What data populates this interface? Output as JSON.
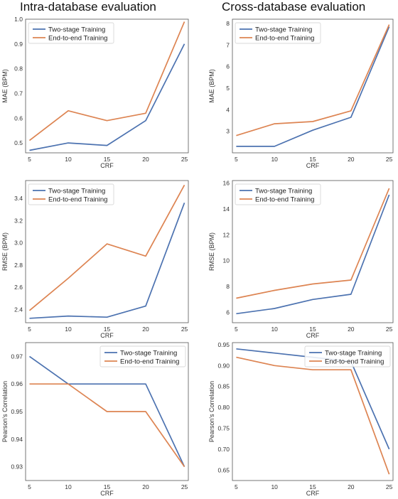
{
  "headings": {
    "left": "Intra-database evaluation",
    "right": "Cross-database evaluation"
  },
  "colors": {
    "two_stage": "#4c72b0",
    "end_to_end": "#dd8452"
  },
  "chart_data": [
    {
      "type": "line",
      "xlabel": "CRF",
      "ylabel": "MAE (BPM)",
      "x": [
        5,
        10,
        15,
        20,
        25
      ],
      "xticks": [
        "5",
        "10",
        "15",
        "20",
        "25"
      ],
      "ylim": [
        0.46,
        1.0
      ],
      "yticks": [
        "0.5",
        "0.6",
        "0.7",
        "0.8",
        "0.9",
        "1.0"
      ],
      "legend": "top-left",
      "grid": false,
      "series": [
        {
          "name": "Two-stage Training",
          "values": [
            0.47,
            0.5,
            0.49,
            0.59,
            0.9
          ]
        },
        {
          "name": "End-to-end Training",
          "values": [
            0.51,
            0.63,
            0.59,
            0.62,
            0.99
          ]
        }
      ]
    },
    {
      "type": "line",
      "xlabel": "CRF",
      "ylabel": "MAE (BPM)",
      "x": [
        5,
        10,
        15,
        20,
        25
      ],
      "xticks": [
        "5",
        "10",
        "15",
        "20",
        "25"
      ],
      "ylim": [
        2.0,
        8.2
      ],
      "yticks": [
        "3",
        "4",
        "5",
        "6",
        "7",
        "8"
      ],
      "legend": "top-left",
      "grid": false,
      "series": [
        {
          "name": "Two-stage Training",
          "values": [
            2.3,
            2.3,
            3.05,
            3.65,
            7.85
          ]
        },
        {
          "name": "End-to-end Training",
          "values": [
            2.8,
            3.35,
            3.45,
            3.95,
            7.95
          ]
        }
      ]
    },
    {
      "type": "line",
      "xlabel": "CRF",
      "ylabel": "RMSE (BPM)",
      "x": [
        5,
        10,
        15,
        20,
        25
      ],
      "xticks": [
        "5",
        "10",
        "15",
        "20",
        "25"
      ],
      "ylim": [
        2.28,
        3.56
      ],
      "yticks": [
        "2.4",
        "2.6",
        "2.8",
        "3.0",
        "3.2",
        "3.4"
      ],
      "legend": "top-left",
      "grid": false,
      "series": [
        {
          "name": "Two-stage Training",
          "values": [
            2.32,
            2.34,
            2.33,
            2.43,
            3.36
          ]
        },
        {
          "name": "End-to-end Training",
          "values": [
            2.39,
            2.68,
            2.99,
            2.88,
            3.52
          ]
        }
      ]
    },
    {
      "type": "line",
      "xlabel": "CRF",
      "ylabel": "RMSE (BPM)",
      "x": [
        5,
        10,
        15,
        20,
        25
      ],
      "xticks": [
        "5",
        "10",
        "15",
        "20",
        "25"
      ],
      "ylim": [
        5.2,
        16.2
      ],
      "yticks": [
        "6",
        "8",
        "10",
        "12",
        "14",
        "16"
      ],
      "legend": "top-left",
      "grid": false,
      "series": [
        {
          "name": "Two-stage Training",
          "values": [
            5.9,
            6.3,
            7.0,
            7.4,
            15.1
          ]
        },
        {
          "name": "End-to-end Training",
          "values": [
            7.1,
            7.7,
            8.2,
            8.5,
            15.6
          ]
        }
      ]
    },
    {
      "type": "line",
      "xlabel": "CRF",
      "ylabel": "Pearson's Correlation",
      "x": [
        5,
        10,
        15,
        20,
        25
      ],
      "xticks": [
        "5",
        "10",
        "15",
        "20",
        "25"
      ],
      "ylim": [
        0.925,
        0.975
      ],
      "yticks": [
        "0.93",
        "0.94",
        "0.95",
        "0.96",
        "0.97"
      ],
      "legend": "top-right",
      "grid": false,
      "series": [
        {
          "name": "Two-stage Training",
          "values": [
            0.97,
            0.96,
            0.96,
            0.96,
            0.93
          ]
        },
        {
          "name": "End-to-end Training",
          "values": [
            0.96,
            0.96,
            0.95,
            0.95,
            0.93
          ]
        }
      ]
    },
    {
      "type": "line",
      "xlabel": "CRF",
      "ylabel": "Pearson's Correlation",
      "x": [
        5,
        10,
        15,
        20,
        25
      ],
      "xticks": [
        "5",
        "10",
        "15",
        "20",
        "25"
      ],
      "ylim": [
        0.625,
        0.955
      ],
      "yticks": [
        "0.65",
        "0.70",
        "0.75",
        "0.80",
        "0.85",
        "0.90",
        "0.95"
      ],
      "legend": "top-right",
      "grid": false,
      "series": [
        {
          "name": "Two-stage Training",
          "values": [
            0.94,
            0.93,
            0.92,
            0.91,
            0.7
          ]
        },
        {
          "name": "End-to-end Training",
          "values": [
            0.92,
            0.9,
            0.89,
            0.89,
            0.64
          ]
        }
      ]
    }
  ]
}
